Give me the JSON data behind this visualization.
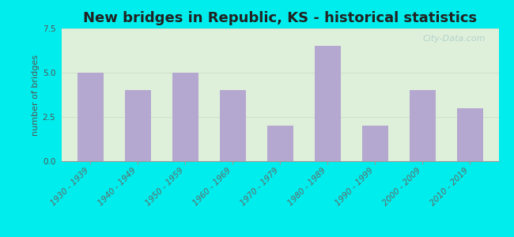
{
  "title": "New bridges in Republic, KS - historical statistics",
  "categories": [
    "1930 - 1939",
    "1940 - 1949",
    "1950 - 1959",
    "1960 - 1969",
    "1970 - 1979",
    "1980 - 1989",
    "1990 - 1999",
    "2000 - 2009",
    "2010 - 2019"
  ],
  "values": [
    5,
    4,
    5,
    4,
    2,
    6.5,
    2,
    4,
    3
  ],
  "bar_color": "#b5a8d0",
  "ylabel": "number of bridges",
  "ylim": [
    0,
    7.5
  ],
  "yticks": [
    0,
    2.5,
    5,
    7.5
  ],
  "background_outer": "#00eded",
  "background_inner_top": "#e8f5e3",
  "background_inner_bottom": "#d8eeda",
  "title_fontsize": 13,
  "axis_label_fontsize": 8,
  "tick_fontsize": 7.5,
  "watermark": "City-Data.com"
}
